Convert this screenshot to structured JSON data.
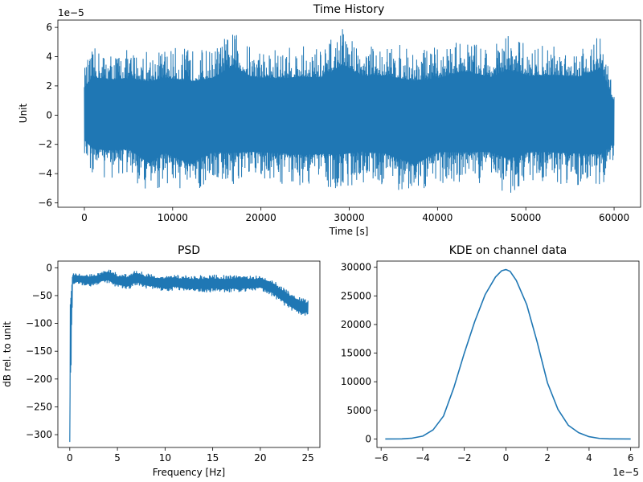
{
  "chart_data": [
    {
      "id": "time_history",
      "type": "line",
      "title": "Time History",
      "xlabel": "Time [s]",
      "ylabel": "Unit",
      "xlim": [
        -3000,
        63000
      ],
      "ylim": [
        -6.3e-05,
        6.5e-05
      ],
      "xticks": [
        0,
        10000,
        20000,
        30000,
        40000,
        50000,
        60000
      ],
      "xtick_labels": [
        "0",
        "10000",
        "20000",
        "30000",
        "40000",
        "50000",
        "60000"
      ],
      "yticks": [
        -6e-05,
        -4e-05,
        -2e-05,
        0,
        2e-05,
        4e-05,
        6e-05
      ],
      "ytick_labels": [
        "−6",
        "−4",
        "−2",
        "0",
        "2",
        "4",
        "6"
      ],
      "offset_text": "1e−5",
      "color": "#1f77b4",
      "series": [
        {
          "x": [
            0,
            1000,
            3000,
            5000,
            7400,
            9000,
            12000,
            14500,
            16800,
            19000,
            22000,
            24500,
            27000,
            29200,
            31500,
            34000,
            37400,
            40000,
            43000,
            46000,
            48000,
            50500,
            53000,
            56000,
            58500,
            60000
          ],
          "upper": [
            3.4e-05,
            4.6e-05,
            4.4e-05,
            4.5e-05,
            4.6e-05,
            4.7e-05,
            4.6e-05,
            4.6e-05,
            5.8e-05,
            4.7e-05,
            4.6e-05,
            4.8e-05,
            4.7e-05,
            6e-05,
            4.8e-05,
            4.9e-05,
            4.7e-05,
            4.6e-05,
            5.3e-05,
            4.7e-05,
            5.6e-05,
            4.8e-05,
            4.9e-05,
            4.8e-05,
            5.6e-05,
            2e-05
          ],
          "lower": [
            -3.2e-05,
            -4.3e-05,
            -4.4e-05,
            -4.3e-05,
            -5.6e-05,
            -4.7e-05,
            -5.6e-05,
            -4.6e-05,
            -5e-05,
            -4.6e-05,
            -4.7e-05,
            -4.9e-05,
            -4.8e-05,
            -5.2e-05,
            -4.6e-05,
            -4.8e-05,
            -5.7e-05,
            -4.6e-05,
            -4.8e-05,
            -4.6e-05,
            -5.5e-05,
            -4.6e-05,
            -4.7e-05,
            -4.8e-05,
            -5.1e-05,
            -3e-05
          ]
        }
      ]
    },
    {
      "id": "psd",
      "type": "line",
      "title": "PSD",
      "xlabel": "Frequency [Hz]",
      "ylabel": "dB rel. to unit",
      "xlim": [
        -1.25,
        26.25
      ],
      "ylim": [
        -323,
        12
      ],
      "xticks": [
        0,
        5,
        10,
        15,
        20,
        25
      ],
      "xtick_labels": [
        "0",
        "5",
        "10",
        "15",
        "20",
        "25"
      ],
      "yticks": [
        0,
        -50,
        -100,
        -150,
        -200,
        -250,
        -300
      ],
      "ytick_labels": [
        "0",
        "−50",
        "−100",
        "−150",
        "−200",
        "−250",
        "−300"
      ],
      "color": "#1f77b4",
      "series": [
        {
          "x": [
            0,
            0.3,
            1,
            2,
            3,
            4,
            4.5,
            5,
            6,
            7,
            8,
            9,
            10,
            11,
            12,
            13,
            14,
            15,
            16,
            17,
            18,
            19,
            20,
            21,
            21.5,
            22,
            22.5,
            23,
            23.5,
            24,
            24.5,
            25
          ],
          "upper": [
            -12,
            -8,
            -10,
            -11,
            -9,
            -1,
            -5,
            -10,
            -11,
            -3,
            -10,
            -12,
            -13,
            -12,
            -13,
            -13,
            -13,
            -12,
            -13,
            -13,
            -13,
            -13,
            -14,
            -18,
            -24,
            -30,
            -36,
            -42,
            -48,
            -52,
            -54,
            -58
          ],
          "lower": [
            -313,
            -30,
            -30,
            -35,
            -30,
            -28,
            -33,
            -36,
            -40,
            -32,
            -38,
            -40,
            -44,
            -40,
            -44,
            -45,
            -45,
            -44,
            -45,
            -44,
            -44,
            -44,
            -42,
            -48,
            -55,
            -62,
            -68,
            -74,
            -80,
            -84,
            -86,
            -88
          ]
        }
      ]
    },
    {
      "id": "kde",
      "type": "line",
      "title": "KDE on channel data",
      "xlabel": "",
      "ylabel": "",
      "xlim": [
        -6.2e-05,
        6.4e-05
      ],
      "ylim": [
        -1480,
        31080
      ],
      "xticks": [
        -6e-05,
        -4e-05,
        -2e-05,
        0,
        2e-05,
        4e-05,
        6e-05
      ],
      "xtick_labels": [
        "−6",
        "−4",
        "−2",
        "0",
        "2",
        "4",
        "6"
      ],
      "yticks": [
        0,
        5000,
        10000,
        15000,
        20000,
        25000,
        30000
      ],
      "ytick_labels": [
        "0",
        "5000",
        "10000",
        "15000",
        "20000",
        "25000",
        "30000"
      ],
      "offset_text": "1e−5",
      "color": "#1f77b4",
      "series": [
        {
          "x": [
            -5.8e-05,
            -5e-05,
            -4.5e-05,
            -4e-05,
            -3.5e-05,
            -3e-05,
            -2.5e-05,
            -2e-05,
            -1.5e-05,
            -1e-05,
            -5e-06,
            -2e-06,
            0,
            2e-06,
            5e-06,
            1e-05,
            1.5e-05,
            2e-05,
            2.5e-05,
            3e-05,
            3.5e-05,
            4e-05,
            4.5e-05,
            5e-05,
            6e-05
          ],
          "y": [
            0,
            20,
            150,
            500,
            1600,
            4000,
            9000,
            15000,
            20500,
            25200,
            28300,
            29400,
            29600,
            29300,
            27700,
            23500,
            17000,
            9800,
            5200,
            2400,
            1100,
            400,
            100,
            20,
            0
          ]
        }
      ]
    }
  ]
}
